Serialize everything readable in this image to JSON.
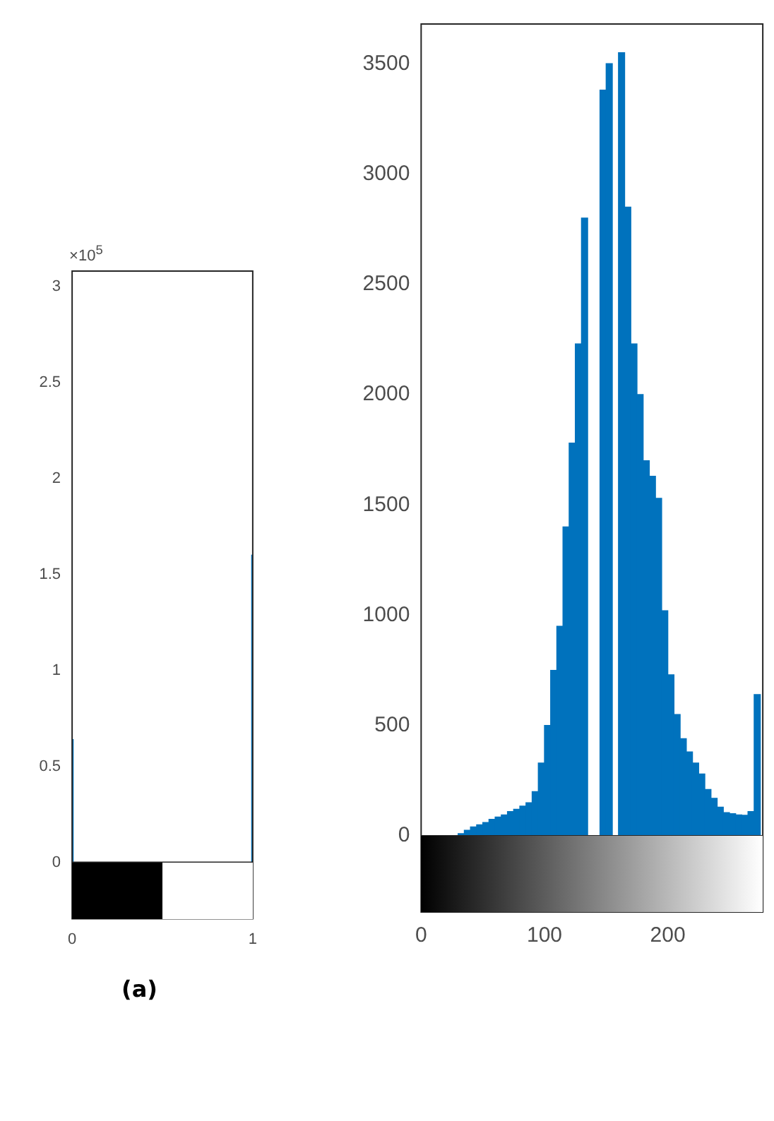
{
  "chart_data": [
    {
      "type": "bar",
      "x": [
        0,
        1
      ],
      "values": [
        0.64,
        1.6
      ],
      "color": "#0072bd",
      "xlim": [
        0,
        1
      ],
      "xticks": [
        0,
        1
      ],
      "ylim": [
        0,
        3.08
      ],
      "yticks": [
        0,
        0.5,
        1,
        1.5,
        2,
        2.5,
        3
      ],
      "annotations": [
        "×10$^{5}$",
        "(a)"
      ]
    },
    {
      "type": "histogram",
      "bins": [
        30,
        35,
        40,
        45,
        50,
        55,
        60,
        65,
        70,
        75,
        80,
        85,
        90,
        95,
        100,
        105,
        110,
        115,
        120,
        125,
        130,
        135,
        140,
        145,
        150,
        155,
        160,
        165,
        170,
        175,
        180,
        185,
        190,
        195,
        200,
        205,
        210,
        215,
        220,
        225,
        230,
        235,
        240,
        245,
        250,
        255,
        260,
        265,
        270,
        275
      ],
      "values": [
        10,
        25,
        40,
        50,
        60,
        75,
        85,
        95,
        110,
        120,
        135,
        150,
        200,
        330,
        500,
        750,
        950,
        1400,
        1780,
        2230,
        2800,
        null,
        null,
        3380,
        3500,
        null,
        3550,
        2850,
        2230,
        2000,
        1700,
        1630,
        1530,
        1020,
        730,
        550,
        440,
        380,
        330,
        280,
        210,
        170,
        130,
        105,
        100,
        95,
        93,
        110,
        640
      ],
      "color": "#0072bd",
      "xlim": [
        0,
        277
      ],
      "xticks": [
        0,
        100,
        200
      ],
      "ylim": [
        0,
        3680
      ],
      "yticks": [
        0,
        500,
        1000,
        1500,
        2000,
        2500,
        3000,
        3500
      ]
    }
  ]
}
